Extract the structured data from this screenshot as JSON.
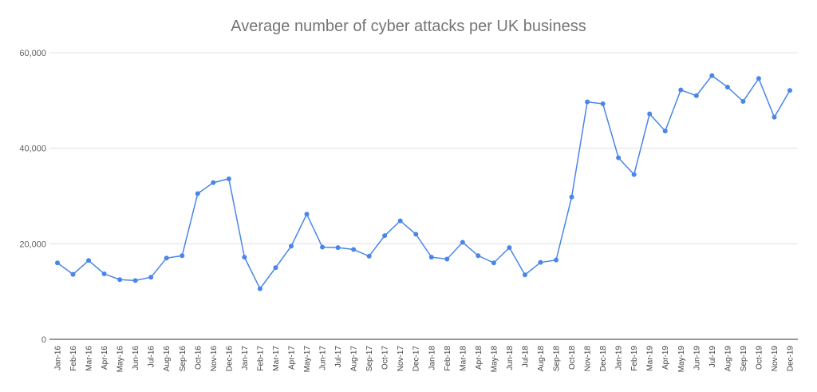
{
  "chart_data": {
    "type": "line",
    "title": "Average number of cyber attacks per UK business",
    "xlabel": "",
    "ylabel": "",
    "ylim": [
      0,
      60000
    ],
    "yticks": [
      0,
      20000,
      40000,
      60000
    ],
    "ytick_labels": [
      "0",
      "20,000",
      "40,000",
      "60,000"
    ],
    "grid": true,
    "legend": "none",
    "color": "#4a86e8",
    "categories": [
      "Jan-16",
      "Feb-16",
      "Mar-16",
      "Apr-16",
      "May-16",
      "Jun-16",
      "Jul-16",
      "Aug-16",
      "Sep-16",
      "Oct-16",
      "Nov-16",
      "Dec-16",
      "Jan-17",
      "Feb-17",
      "Mar-17",
      "Apr-17",
      "May-17",
      "Jun-17",
      "Jul-17",
      "Aug-17",
      "Sep-17",
      "Oct-17",
      "Nov-17",
      "Dec-17",
      "Jan-18",
      "Feb-18",
      "Mar-18",
      "Apr-18",
      "May-18",
      "Jun-18",
      "Jul-18",
      "Aug-18",
      "Sep-18",
      "Oct-18",
      "Nov-18",
      "Dec-18",
      "Jan-19",
      "Feb-19",
      "Mar-19",
      "Apr-19",
      "May-19",
      "Jun-19",
      "Jul-19",
      "Aug-19",
      "Sep-19",
      "Oct-19",
      "Nov-19",
      "Dec-19"
    ],
    "series": [
      {
        "values": [
          16000,
          13600,
          16500,
          13700,
          12500,
          12300,
          13000,
          17000,
          17500,
          30500,
          32800,
          33600,
          17200,
          10600,
          15000,
          19500,
          26200,
          19300,
          19200,
          18800,
          17400,
          21700,
          24800,
          22000,
          17200,
          16800,
          20300,
          17500,
          16000,
          19200,
          13500,
          16100,
          16600,
          29800,
          49700,
          49300,
          38000,
          34500,
          47200,
          43600,
          52200,
          51000,
          55200,
          52800,
          49800,
          54600,
          46500,
          52100
        ]
      }
    ]
  }
}
